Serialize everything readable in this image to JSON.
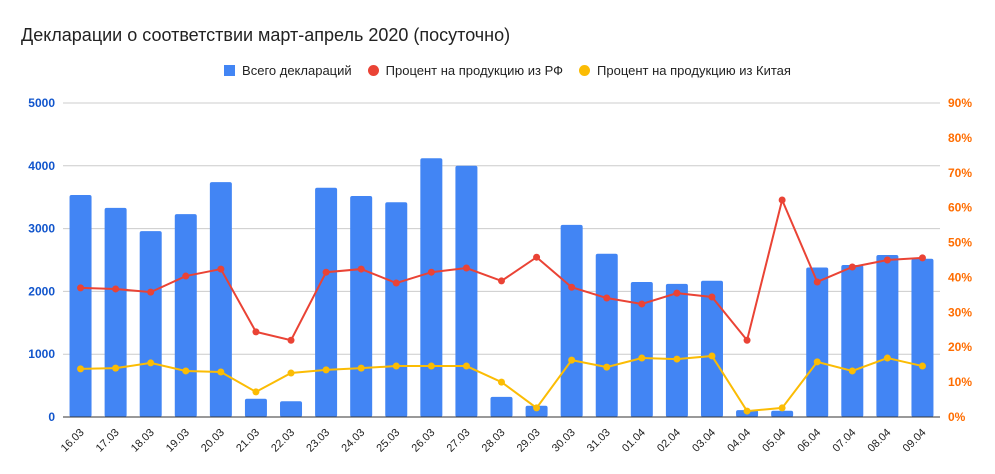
{
  "chart_data": {
    "type": "bar",
    "title": "Декларации о соответствии март-апрель 2020 (посуточно)",
    "xlabel": "",
    "ylabel": "",
    "ylabel_right": "",
    "categories": [
      "16.03",
      "17.03",
      "18.03",
      "19.03",
      "20.03",
      "21.03",
      "22.03",
      "23.03",
      "24.03",
      "25.03",
      "26.03",
      "27.03",
      "28.03",
      "29.03",
      "30.03",
      "31.03",
      "01.04",
      "02.04",
      "03.04",
      "04.04",
      "05.04",
      "06.04",
      "07.04",
      "08.04",
      "09.04"
    ],
    "series": [
      {
        "name": "Всего деклараций",
        "type": "bar",
        "axis": "left",
        "color": "#4285f4",
        "values": [
          3535,
          3330,
          2960,
          3230,
          3740,
          290,
          250,
          3650,
          3520,
          3420,
          4120,
          4000,
          320,
          180,
          3060,
          2600,
          2150,
          2120,
          2170,
          110,
          100,
          2380,
          2420,
          2580,
          2520
        ]
      },
      {
        "name": "Процент на продукцию из РФ",
        "type": "line",
        "axis": "right",
        "color": "#ea4335",
        "values": [
          37.0,
          36.7,
          35.8,
          40.4,
          42.4,
          24.4,
          22.0,
          41.5,
          42.4,
          38.4,
          41.5,
          42.7,
          39.0,
          45.8,
          37.2,
          34.1,
          32.4,
          35.5,
          34.4,
          22.0,
          62.2,
          38.7,
          43.0,
          45.0,
          45.6
        ]
      },
      {
        "name": "Процент на продукцию из Китая",
        "type": "line",
        "axis": "right",
        "color": "#fbbc04",
        "values": [
          13.8,
          14.0,
          15.5,
          13.2,
          12.9,
          7.2,
          12.6,
          13.5,
          14.0,
          14.6,
          14.6,
          14.6,
          10.0,
          2.6,
          16.3,
          14.3,
          16.9,
          16.6,
          17.5,
          1.7,
          2.6,
          15.8,
          13.2,
          16.9,
          14.6
        ]
      }
    ],
    "ylim": [
      0,
      5000
    ],
    "ylim_right": [
      0,
      90
    ],
    "yticks_left": [
      "0",
      "1000",
      "2000",
      "3000",
      "4000",
      "5000"
    ],
    "yticks_right": [
      "0%",
      "10%",
      "20%",
      "30%",
      "40%",
      "50%",
      "60%",
      "70%",
      "80%",
      "90%"
    ],
    "grid": true,
    "legend_position": "top"
  },
  "header": {
    "title": "Декларации о соответствии март-апрель 2020 (посуточно)"
  },
  "legend": {
    "items": [
      {
        "label": "Всего деклараций",
        "color": "#4285f4"
      },
      {
        "label": "Процент на продукцию из РФ",
        "color": "#ea4335"
      },
      {
        "label": "Процент на продукцию из Китая",
        "color": "#fbbc04"
      }
    ]
  }
}
